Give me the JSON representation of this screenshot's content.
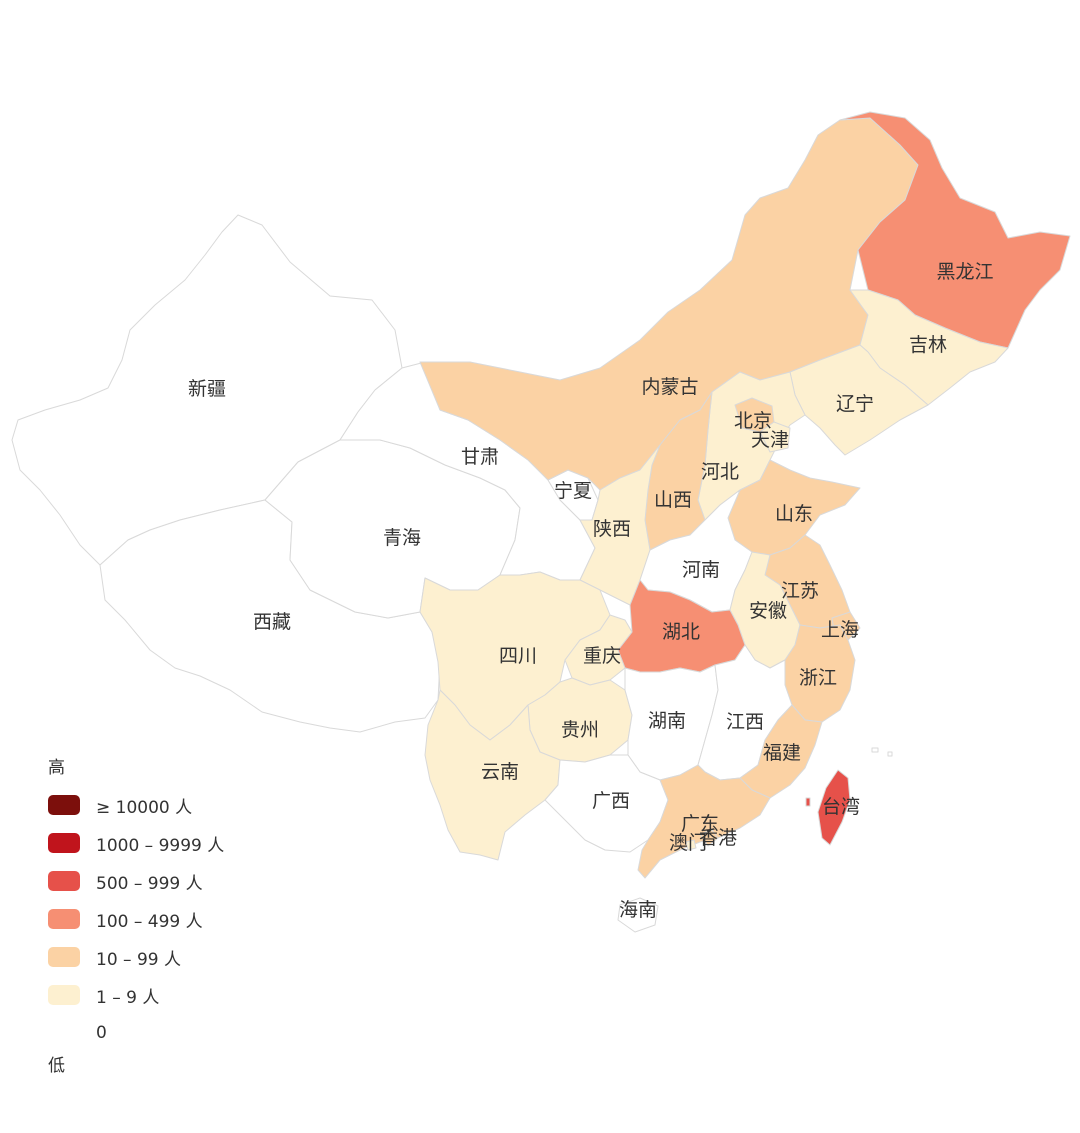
{
  "colors": {
    "level_0": "#ffffff",
    "level_1": "#fdf0d0",
    "level_2": "#fbd2a4",
    "level_3": "#f68f73",
    "level_4": "#e6514a",
    "level_5": "#c0141c",
    "level_6": "#7c0f0c"
  },
  "legend": {
    "high_label": "高",
    "low_label": "低",
    "items": [
      {
        "label": "≥ 10000 人",
        "color": "#7c0f0c"
      },
      {
        "label": "1000 – 9999 人",
        "color": "#c0141c"
      },
      {
        "label": "500 – 999 人",
        "color": "#e6514a"
      },
      {
        "label": "100 – 499 人",
        "color": "#f68f73"
      },
      {
        "label": "10 – 99 人",
        "color": "#fbd2a4"
      },
      {
        "label": "1 – 9 人",
        "color": "#fdf0d0"
      },
      {
        "label": "0",
        "color": "#ffffff"
      }
    ]
  },
  "provinces": [
    {
      "name": "新疆",
      "level": 0
    },
    {
      "name": "西藏",
      "level": 0
    },
    {
      "name": "青海",
      "level": 0
    },
    {
      "name": "甘肃",
      "level": 0
    },
    {
      "name": "宁夏",
      "level": 0
    },
    {
      "name": "内蒙古",
      "level": 2
    },
    {
      "name": "黑龙江",
      "level": 3
    },
    {
      "name": "吉林",
      "level": 1
    },
    {
      "name": "辽宁",
      "level": 1
    },
    {
      "name": "北京",
      "level": 2
    },
    {
      "name": "天津",
      "level": 1
    },
    {
      "name": "河北",
      "level": 1
    },
    {
      "name": "山西",
      "level": 2
    },
    {
      "name": "陕西",
      "level": 1
    },
    {
      "name": "山东",
      "level": 2
    },
    {
      "name": "河南",
      "level": 0
    },
    {
      "name": "江苏",
      "level": 2
    },
    {
      "name": "安徽",
      "level": 1
    },
    {
      "name": "上海",
      "level": 2
    },
    {
      "name": "湖北",
      "level": 3
    },
    {
      "name": "浙江",
      "level": 2
    },
    {
      "name": "四川",
      "level": 1
    },
    {
      "name": "重庆",
      "level": 1
    },
    {
      "name": "贵州",
      "level": 1
    },
    {
      "name": "湖南",
      "level": 0
    },
    {
      "name": "江西",
      "level": 0
    },
    {
      "name": "福建",
      "level": 2
    },
    {
      "name": "云南",
      "level": 1
    },
    {
      "name": "广西",
      "level": 0
    },
    {
      "name": "广东",
      "level": 2
    },
    {
      "name": "香港",
      "level": 2
    },
    {
      "name": "澳门",
      "level": 1
    },
    {
      "name": "台湾",
      "level": 4
    },
    {
      "name": "海南",
      "level": 0
    }
  ]
}
